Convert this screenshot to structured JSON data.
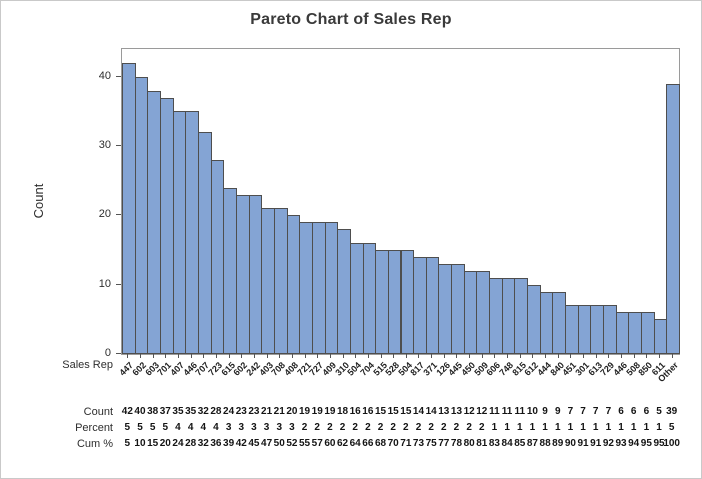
{
  "window": {
    "background": "#ffffff",
    "border_color": "#c9c9c9"
  },
  "chart_data": {
    "type": "bar",
    "title": "Pareto Chart of Sales Rep",
    "ylabel": "Count",
    "xlabel": "Sales Rep",
    "ylim": [
      0,
      44
    ],
    "yticks": [
      0,
      10,
      20,
      30,
      40
    ],
    "grid": false,
    "legend_position": "none",
    "bar_fill": "#84a4d4",
    "bar_edge": "#4e4e4e",
    "categories": [
      "447",
      "602",
      "603",
      "701",
      "407",
      "446",
      "707",
      "723",
      "615",
      "602",
      "242",
      "403",
      "708",
      "408",
      "721",
      "727",
      "409",
      "310",
      "504",
      "704",
      "515",
      "528",
      "504",
      "817",
      "371",
      "126",
      "445",
      "450",
      "509",
      "606",
      "748",
      "815",
      "612",
      "444",
      "840",
      "451",
      "301",
      "613",
      "729",
      "446",
      "508",
      "850",
      "611",
      "Other"
    ],
    "values": [
      42,
      40,
      38,
      37,
      35,
      35,
      32,
      28,
      24,
      23,
      23,
      21,
      21,
      20,
      19,
      19,
      19,
      18,
      16,
      16,
      15,
      15,
      15,
      14,
      14,
      13,
      13,
      12,
      12,
      11,
      11,
      11,
      10,
      9,
      9,
      7,
      7,
      7,
      7,
      6,
      6,
      6,
      5,
      39
    ],
    "rows": [
      {
        "label": "Count",
        "values": [
          "42",
          "40",
          "38",
          "37",
          "35",
          "35",
          "32",
          "28",
          "24",
          "23",
          "23",
          "21",
          "21",
          "20",
          "19",
          "19",
          "19",
          "18",
          "16",
          "16",
          "15",
          "15",
          "15",
          "14",
          "14",
          "13",
          "13",
          "12",
          "12",
          "11",
          "11",
          "11",
          "10",
          "9",
          "9",
          "7",
          "7",
          "7",
          "7",
          "6",
          "6",
          "6",
          "5",
          "39"
        ]
      },
      {
        "label": "Percent",
        "values": [
          "5",
          "5",
          "5",
          "5",
          "4",
          "4",
          "4",
          "4",
          "3",
          "3",
          "3",
          "3",
          "3",
          "3",
          "2",
          "2",
          "2",
          "2",
          "2",
          "2",
          "2",
          "2",
          "2",
          "2",
          "2",
          "2",
          "2",
          "2",
          "2",
          "1",
          "1",
          "1",
          "1",
          "1",
          "1",
          "1",
          "1",
          "1",
          "1",
          "1",
          "1",
          "1",
          "1",
          "5"
        ]
      },
      {
        "label": "Cum %",
        "values": [
          "5",
          "10",
          "15",
          "20",
          "24",
          "28",
          "32",
          "36",
          "39",
          "42",
          "45",
          "47",
          "50",
          "52",
          "55",
          "57",
          "60",
          "62",
          "64",
          "66",
          "68",
          "70",
          "71",
          "73",
          "75",
          "77",
          "78",
          "80",
          "81",
          "83",
          "84",
          "85",
          "87",
          "88",
          "89",
          "90",
          "91",
          "91",
          "92",
          "93",
          "94",
          "95",
          "95",
          "100"
        ]
      }
    ]
  }
}
